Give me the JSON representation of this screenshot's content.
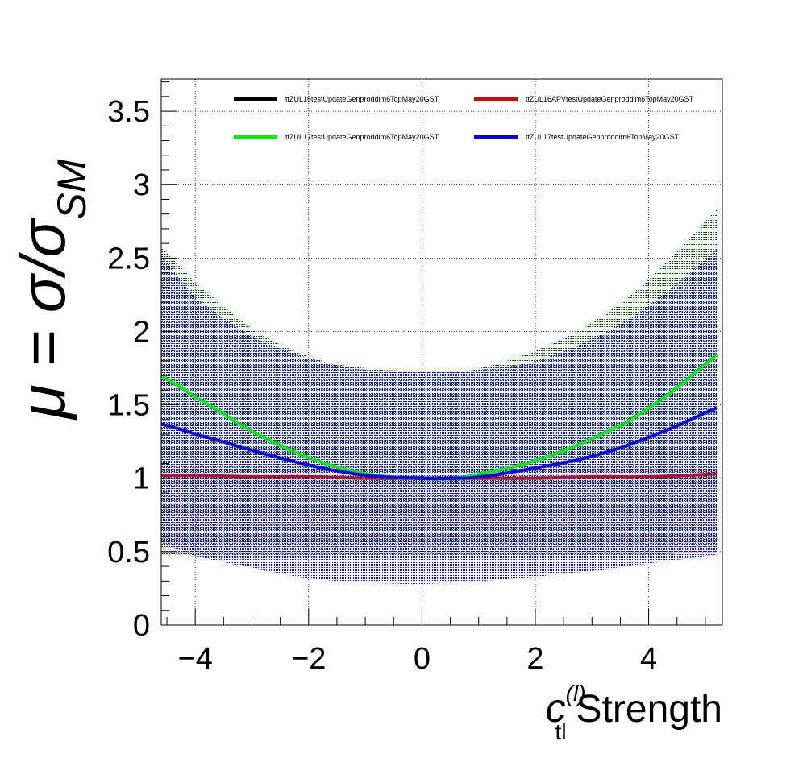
{
  "chart_data": {
    "type": "line",
    "title": "",
    "xlabel_main": "c",
    "xlabel_sup": "(l)",
    "xlabel_sub": "tl",
    "xlabel_suffix": "Strength",
    "ylabel_prefix": "μ = σ/σ",
    "ylabel_sub": "SM",
    "xlim": [
      -4.6,
      5.3
    ],
    "ylim": [
      0,
      3.72
    ],
    "x_ticks": [
      -4,
      -2,
      0,
      2,
      4
    ],
    "x_tick_labels": [
      "−4",
      "−2",
      "0",
      "2",
      "4"
    ],
    "y_ticks": [
      0,
      0.5,
      1,
      1.5,
      2,
      2.5,
      3,
      3.5
    ],
    "y_tick_labels": [
      "0",
      "0.5",
      "1",
      "1.5",
      "2",
      "2.5",
      "3",
      "3.5"
    ],
    "grid": true,
    "legend_position": "top",
    "series": [
      {
        "name": "ttZUL16testUpdateGenproddim6TopMay20GST",
        "color": "#000000",
        "x": [
          -4.6,
          -4,
          -3,
          -2,
          -1,
          0,
          0.5,
          1,
          2,
          3,
          4,
          5.2
        ],
        "y": [
          1.7,
          1.55,
          1.32,
          1.14,
          1.03,
          1.0,
          1.0,
          1.03,
          1.12,
          1.27,
          1.48,
          1.84
        ],
        "band_upper": [
          2.58,
          2.33,
          2.02,
          1.83,
          1.75,
          1.73,
          1.73,
          1.75,
          1.87,
          2.06,
          2.36,
          2.83
        ],
        "band_lower": [
          0.48,
          0.47,
          0.47,
          0.47,
          0.48,
          0.48,
          0.48,
          0.48,
          0.48,
          0.48,
          0.48,
          0.5
        ]
      },
      {
        "name": "ttZUL16APVtestUpdateGenproddim6TopMay20GST",
        "color": "#dd0000",
        "x": [
          -4.6,
          -4,
          -3,
          -2,
          -1,
          0,
          0.5,
          1,
          2,
          3,
          4,
          5.2
        ],
        "y": [
          1.02,
          1.02,
          1.01,
          1.01,
          1.0,
          1.0,
          1.0,
          1.0,
          1.0,
          1.01,
          1.01,
          1.03
        ],
        "band_upper": [
          1.06,
          1.05,
          1.04,
          1.03,
          1.02,
          1.02,
          1.02,
          1.02,
          1.03,
          1.04,
          1.05,
          1.07
        ],
        "band_lower": [
          0.47,
          0.46,
          0.45,
          0.45,
          0.45,
          0.45,
          0.45,
          0.45,
          0.45,
          0.46,
          0.47,
          0.48
        ]
      },
      {
        "name": "ttZUL17testUpdateGenproddim6TopMay20GST",
        "color": "#00ee00",
        "x": [
          -4.6,
          -4,
          -3,
          -2,
          -1,
          0,
          0.5,
          1,
          2,
          3,
          4,
          5.2
        ],
        "y": [
          1.7,
          1.55,
          1.32,
          1.14,
          1.03,
          1.0,
          1.0,
          1.03,
          1.12,
          1.27,
          1.48,
          1.84
        ],
        "band_upper": [
          2.58,
          2.33,
          2.02,
          1.83,
          1.75,
          1.73,
          1.73,
          1.75,
          1.87,
          2.06,
          2.36,
          2.83
        ],
        "band_lower": [
          0.48,
          0.47,
          0.47,
          0.47,
          0.48,
          0.48,
          0.48,
          0.48,
          0.48,
          0.48,
          0.48,
          0.5
        ]
      },
      {
        "name": "ttZUL17testUpdateGenproddim6TopMay20GST",
        "color": "#0000ee",
        "x": [
          -4.6,
          -4,
          -3,
          -2,
          -1,
          0,
          0.5,
          1,
          2,
          3,
          4,
          5.2
        ],
        "y": [
          1.37,
          1.3,
          1.19,
          1.09,
          1.02,
          1.0,
          1.0,
          1.01,
          1.07,
          1.15,
          1.28,
          1.48
        ],
        "band_upper": [
          2.52,
          2.23,
          1.97,
          1.82,
          1.74,
          1.73,
          1.73,
          1.74,
          1.8,
          1.95,
          2.18,
          2.56
        ],
        "band_lower": [
          0.56,
          0.47,
          0.39,
          0.32,
          0.29,
          0.28,
          0.29,
          0.3,
          0.33,
          0.37,
          0.42,
          0.48
        ]
      }
    ]
  }
}
